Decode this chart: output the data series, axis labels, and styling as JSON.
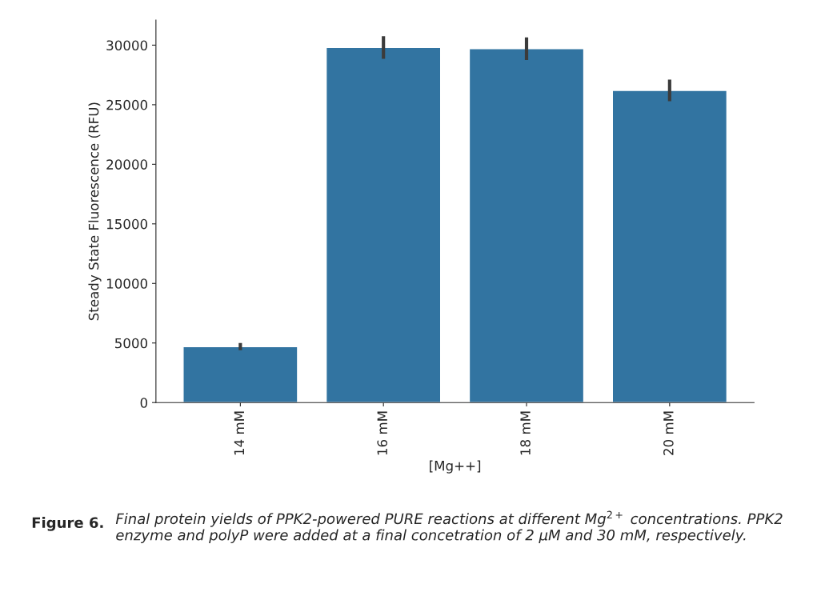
{
  "chart_data": {
    "type": "bar",
    "categories": [
      "14 mM",
      "16 mM",
      "18 mM",
      "20 mM"
    ],
    "values": [
      4700,
      29800,
      29700,
      26200
    ],
    "errors": [
      300,
      950,
      950,
      900
    ],
    "color": "#3274a1",
    "xlabel": "[Mg++]",
    "ylabel": "Steady State Fluorescence (RFU)",
    "ylim": [
      0,
      32100
    ],
    "yticks": [
      0,
      5000,
      10000,
      15000,
      20000,
      25000,
      30000
    ],
    "annotations": [
      "Figure 6.",
      "Final protein yields of PPK2-powered PURE reactions at different Mg$^{2+}$ concentrations. PPK2 enzyme and polyP were added at a final concetration of 2 µM and 30 mM, respectively."
    ]
  }
}
